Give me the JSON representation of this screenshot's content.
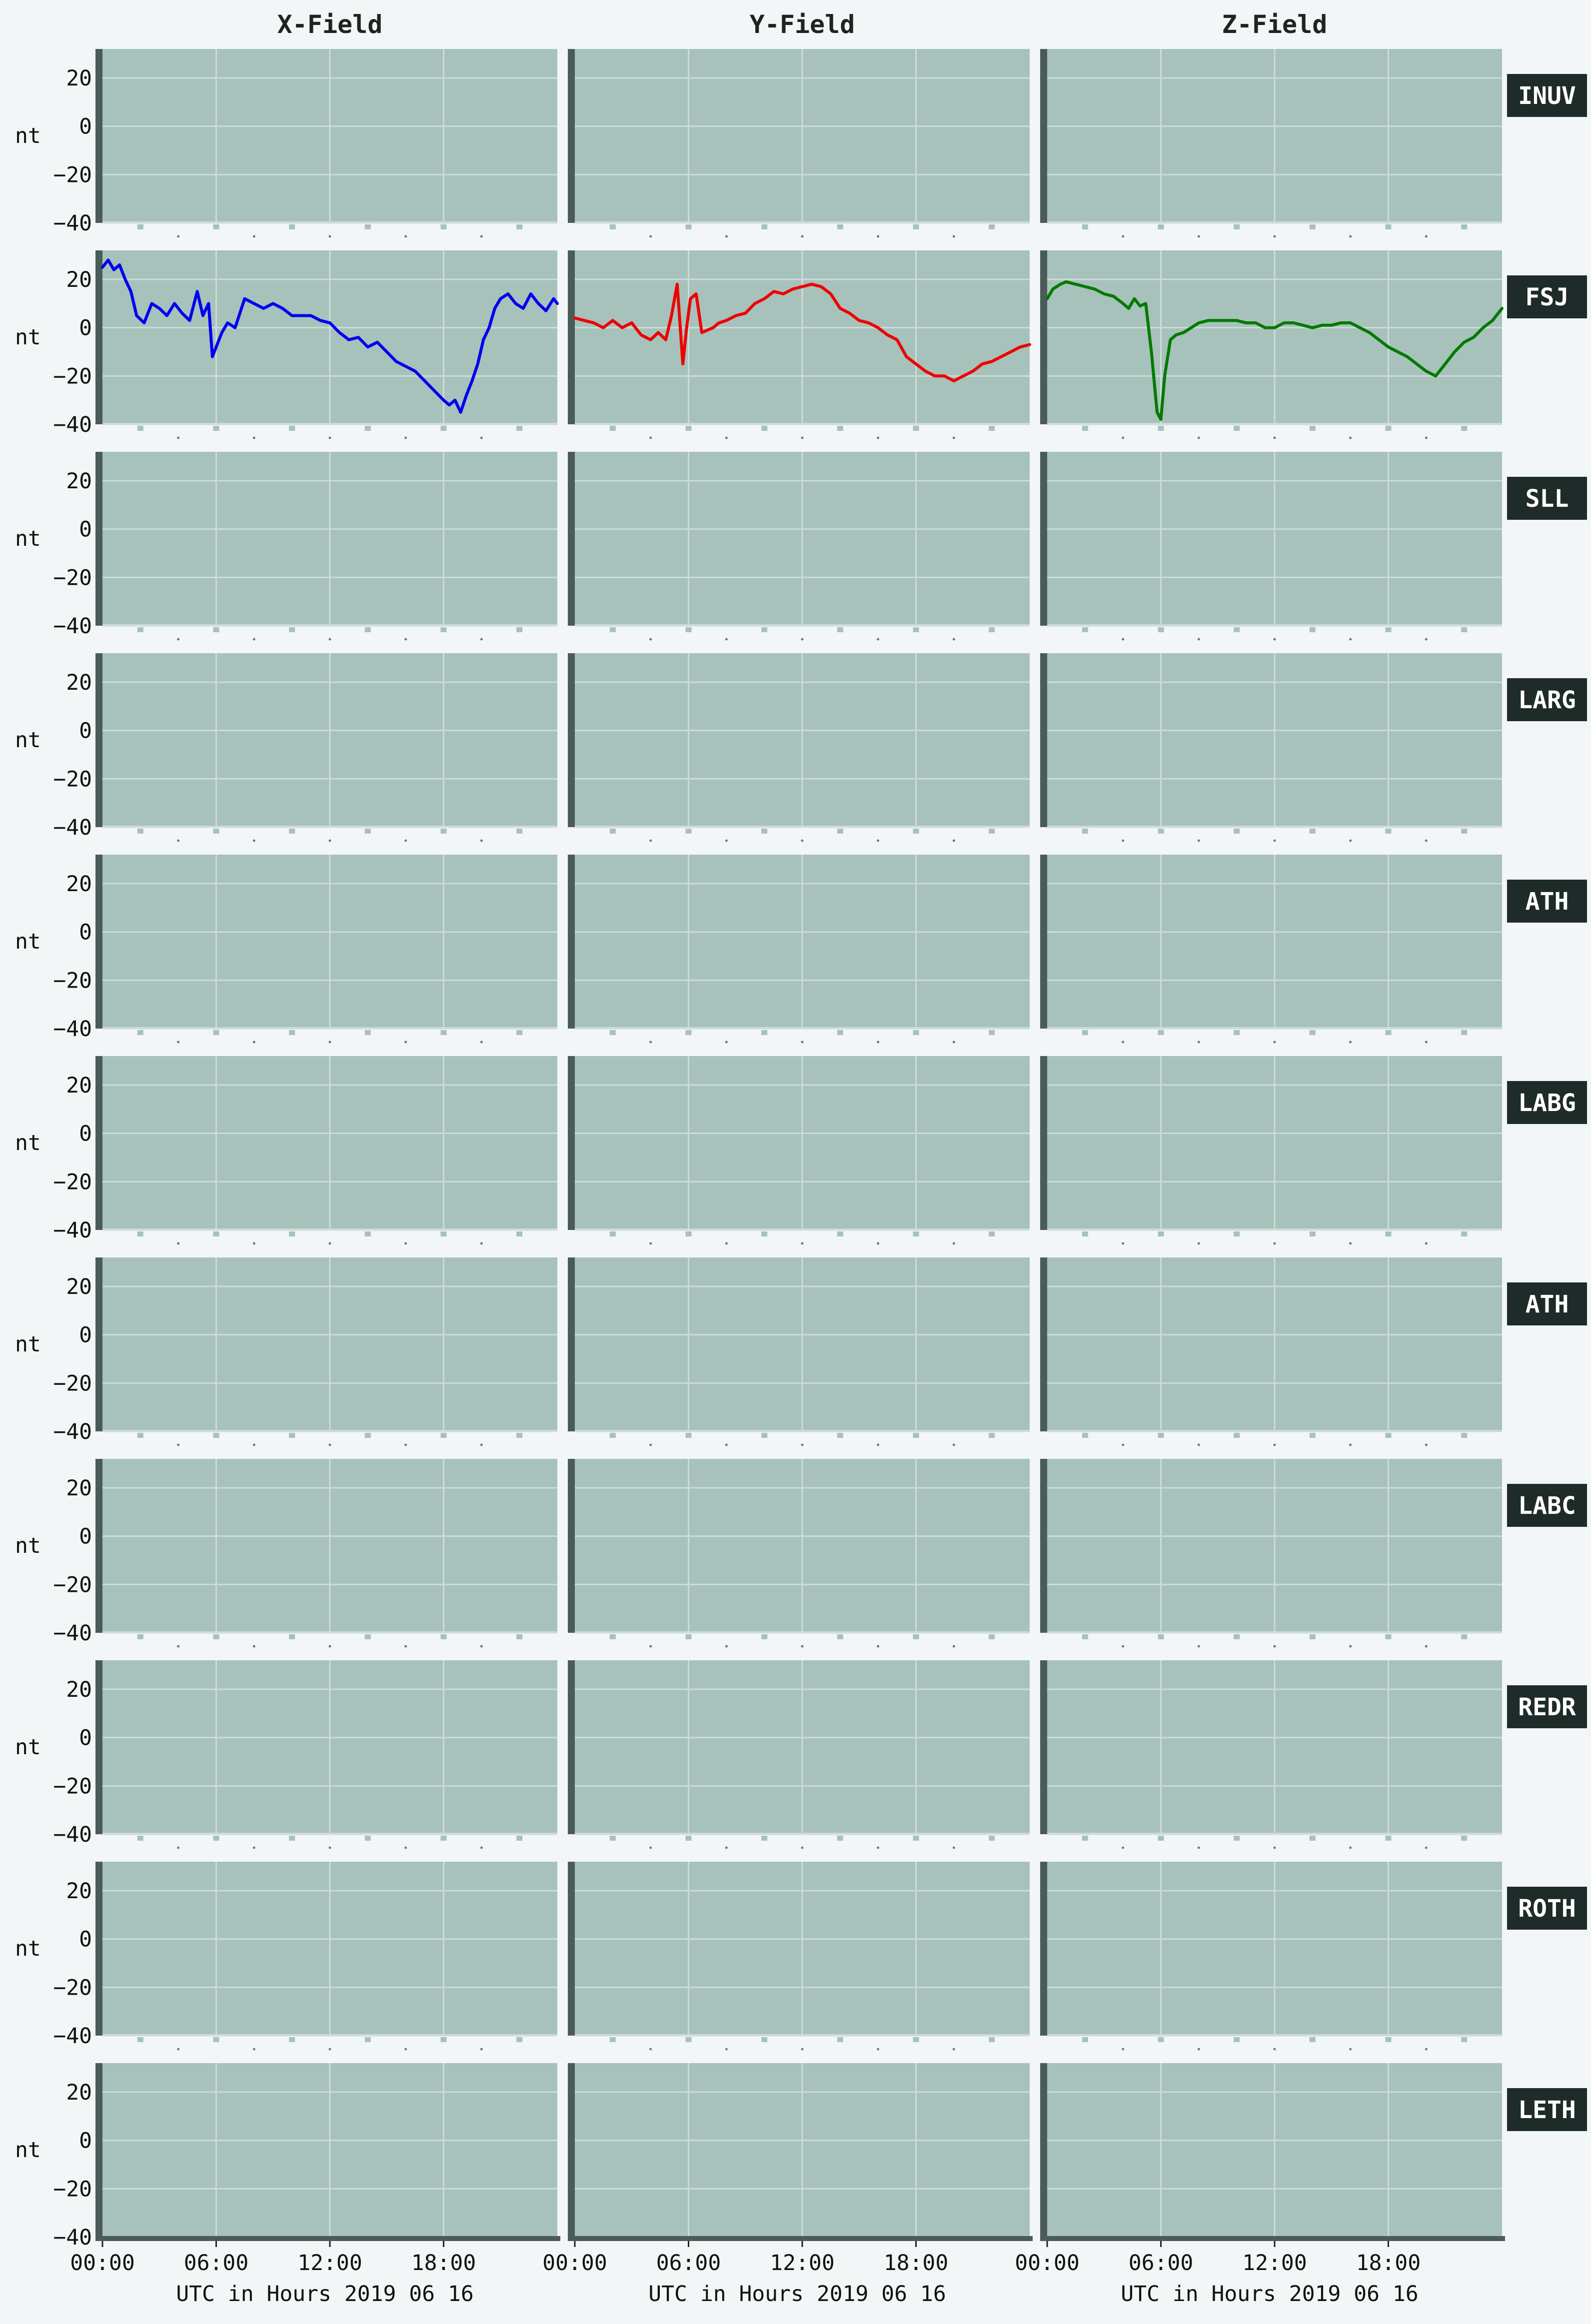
{
  "chart_data": {
    "type": "line",
    "column_titles": [
      "X-Field",
      "Y-Field",
      "Z-Field"
    ],
    "ylabel": "nt",
    "xlabel": "UTC in Hours  2019 06 16",
    "x_tick_labels": [
      "00:00",
      "06:00",
      "12:00",
      "18:00"
    ],
    "x_ticks": [
      0,
      6,
      12,
      18
    ],
    "xlim": [
      0,
      24
    ],
    "ylim": [
      -40,
      32
    ],
    "y_ticks": [
      20,
      0,
      -20,
      -40
    ],
    "y_tick_labels": [
      "20",
      "0",
      "−20",
      "−40"
    ],
    "grid": true,
    "stations": [
      "INUV",
      "FSJ",
      "SLL",
      "LARG",
      "ATH",
      "LABG",
      "ATH",
      "LABC",
      "REDR",
      "ROTH",
      "LETH"
    ],
    "series": [
      {
        "station": "FSJ",
        "component": "X-Field",
        "color": "#0000ee",
        "x": [
          0,
          0.3,
          0.6,
          0.9,
          1.2,
          1.5,
          1.8,
          2.2,
          2.6,
          3.0,
          3.4,
          3.8,
          4.2,
          4.6,
          5.0,
          5.3,
          5.6,
          5.8,
          6.0,
          6.3,
          6.6,
          7.0,
          7.5,
          8.0,
          8.5,
          9.0,
          9.5,
          10.0,
          10.5,
          11.0,
          11.5,
          12.0,
          12.5,
          13.0,
          13.5,
          14.0,
          14.5,
          15.0,
          15.5,
          16.0,
          16.5,
          17.0,
          17.5,
          18.0,
          18.3,
          18.6,
          18.9,
          19.2,
          19.5,
          19.8,
          20.1,
          20.4,
          20.7,
          21.0,
          21.4,
          21.8,
          22.2,
          22.6,
          23.0,
          23.4,
          23.8,
          24.0
        ],
        "y": [
          25,
          28,
          24,
          26,
          20,
          15,
          5,
          2,
          10,
          8,
          5,
          10,
          6,
          3,
          15,
          5,
          10,
          -12,
          -8,
          -2,
          2,
          0,
          12,
          10,
          8,
          10,
          8,
          5,
          5,
          5,
          3,
          2,
          -2,
          -5,
          -4,
          -8,
          -6,
          -10,
          -14,
          -16,
          -18,
          -22,
          -26,
          -30,
          -32,
          -30,
          -35,
          -28,
          -22,
          -15,
          -5,
          0,
          8,
          12,
          14,
          10,
          8,
          14,
          10,
          7,
          12,
          10
        ]
      },
      {
        "station": "FSJ",
        "component": "Y-Field",
        "color": "#ee0000",
        "x": [
          0,
          0.5,
          1.0,
          1.5,
          2.0,
          2.5,
          3.0,
          3.5,
          4.0,
          4.4,
          4.8,
          5.1,
          5.4,
          5.7,
          5.9,
          6.1,
          6.4,
          6.7,
          7.0,
          7.3,
          7.6,
          8.0,
          8.5,
          9.0,
          9.5,
          10.0,
          10.5,
          11.0,
          11.5,
          12.0,
          12.5,
          13.0,
          13.5,
          14.0,
          14.5,
          15.0,
          15.5,
          16.0,
          16.5,
          17.0,
          17.5,
          18.0,
          18.5,
          19.0,
          19.5,
          20.0,
          20.5,
          21.0,
          21.5,
          22.0,
          22.5,
          23.0,
          23.5,
          24.0
        ],
        "y": [
          4,
          3,
          2,
          0,
          3,
          0,
          2,
          -3,
          -5,
          -2,
          -5,
          5,
          18,
          -15,
          0,
          12,
          14,
          -2,
          -1,
          0,
          2,
          3,
          5,
          6,
          10,
          12,
          15,
          14,
          16,
          17,
          18,
          17,
          14,
          8,
          6,
          3,
          2,
          0,
          -3,
          -5,
          -12,
          -15,
          -18,
          -20,
          -20,
          -22,
          -20,
          -18,
          -15,
          -14,
          -12,
          -10,
          -8,
          -7
        ]
      },
      {
        "station": "FSJ",
        "component": "Z-Field",
        "color": "#007a00",
        "x": [
          0,
          0.3,
          0.7,
          1.0,
          1.5,
          2.0,
          2.5,
          3.0,
          3.5,
          4.0,
          4.3,
          4.6,
          4.9,
          5.2,
          5.5,
          5.8,
          6.0,
          6.2,
          6.5,
          6.8,
          7.2,
          7.6,
          8.0,
          8.5,
          9.0,
          9.5,
          10.0,
          10.5,
          11.0,
          11.5,
          12.0,
          12.5,
          13.0,
          13.5,
          14.0,
          14.5,
          15.0,
          15.5,
          16.0,
          16.5,
          17.0,
          17.5,
          18.0,
          18.5,
          19.0,
          19.5,
          20.0,
          20.5,
          21.0,
          21.5,
          22.0,
          22.5,
          23.0,
          23.5,
          24.0
        ],
        "y": [
          12,
          16,
          18,
          19,
          18,
          17,
          16,
          14,
          13,
          10,
          8,
          12,
          9,
          10,
          -10,
          -35,
          -38,
          -20,
          -5,
          -3,
          -2,
          0,
          2,
          3,
          3,
          3,
          3,
          2,
          2,
          0,
          0,
          2,
          2,
          1,
          0,
          1,
          1,
          2,
          2,
          0,
          -2,
          -5,
          -8,
          -10,
          -12,
          -15,
          -18,
          -20,
          -15,
          -10,
          -6,
          -4,
          0,
          3,
          8
        ]
      }
    ]
  }
}
